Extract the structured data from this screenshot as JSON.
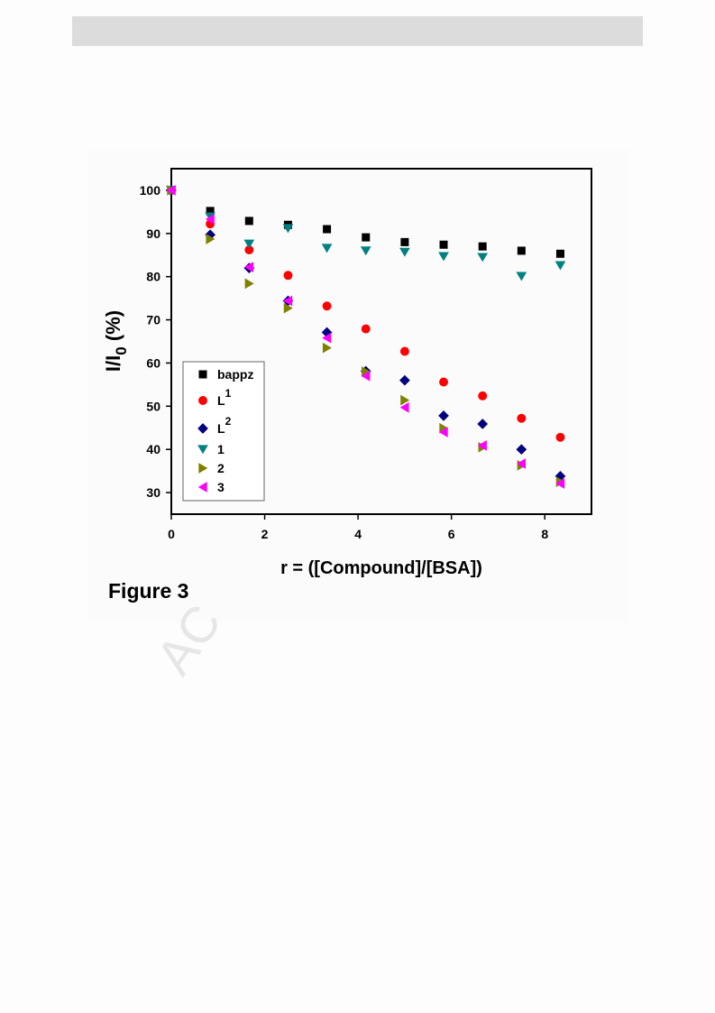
{
  "chart_data": {
    "type": "scatter",
    "x_label": "r = ([Compound]/[BSA])",
    "y_label": {
      "text": "I/I",
      "sub": "0",
      "rest": " (%)"
    },
    "figure_label": "Figure 3",
    "watermark": "AC",
    "xlim": [
      0,
      9
    ],
    "ylim": [
      25,
      105
    ],
    "xticks": [
      0,
      2,
      4,
      6,
      8
    ],
    "yticks": [
      30,
      40,
      50,
      60,
      70,
      80,
      90,
      100
    ],
    "legend": "lower-left",
    "x": [
      0,
      0.833,
      1.667,
      2.5,
      3.333,
      4.167,
      5,
      5.833,
      6.667,
      7.5,
      8.333
    ],
    "series": [
      {
        "name": "bappz",
        "color": "#000000",
        "marker": "square",
        "values": [
          100,
          95.2,
          92.9,
          92.0,
          91.0,
          89.1,
          88.0,
          87.4,
          87.0,
          86.0,
          85.3
        ]
      },
      {
        "name": "L",
        "name_sup": "1",
        "color": "#ff0000",
        "marker": "circle",
        "values": [
          100,
          92.2,
          86.2,
          80.3,
          73.2,
          67.9,
          62.7,
          55.6,
          52.4,
          47.2,
          42.8
        ]
      },
      {
        "name": "L",
        "name_sup": "2",
        "color": "#000080",
        "marker": "diamond",
        "values": [
          100,
          89.7,
          82.0,
          74.4,
          67.1,
          58.1,
          56.0,
          47.8,
          45.9,
          40.0,
          33.8
        ]
      },
      {
        "name": "1",
        "color": "#008080",
        "marker": "triangle-down",
        "values": [
          100,
          93.9,
          87.6,
          91.2,
          86.6,
          86.0,
          85.7,
          84.7,
          84.5,
          80.1,
          82.6
        ]
      },
      {
        "name": "2",
        "color": "#808000",
        "marker": "triangle-right",
        "values": [
          100,
          88.7,
          78.4,
          72.7,
          63.5,
          58.0,
          51.4,
          44.9,
          40.5,
          36.3,
          32.5
        ]
      },
      {
        "name": "3",
        "color": "#ff00ff",
        "marker": "triangle-left",
        "values": [
          100,
          93.3,
          82.2,
          74.4,
          65.8,
          57.0,
          49.7,
          44.0,
          40.9,
          36.7,
          32.1
        ]
      }
    ]
  }
}
